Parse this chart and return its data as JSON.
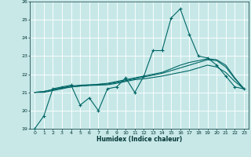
{
  "xlabel": "Humidex (Indice chaleur)",
  "xlim": [
    -0.5,
    23.5
  ],
  "ylim": [
    19,
    26
  ],
  "yticks": [
    19,
    20,
    21,
    22,
    23,
    24,
    25,
    26
  ],
  "xticks": [
    0,
    1,
    2,
    3,
    4,
    5,
    6,
    7,
    8,
    9,
    10,
    11,
    12,
    13,
    14,
    15,
    16,
    17,
    18,
    19,
    20,
    21,
    22,
    23
  ],
  "background_color": "#c8e8e8",
  "line_color": "#006666",
  "grid_color": "#ffffff",
  "line1": [
    19.0,
    19.7,
    21.2,
    21.3,
    21.4,
    20.3,
    20.7,
    20.0,
    21.2,
    21.3,
    21.8,
    21.0,
    21.9,
    23.3,
    23.3,
    25.1,
    25.6,
    24.2,
    23.0,
    22.9,
    22.5,
    21.9,
    21.3,
    21.2
  ],
  "line2": [
    21.0,
    21.05,
    21.15,
    21.25,
    21.3,
    21.35,
    21.4,
    21.45,
    21.5,
    21.6,
    21.7,
    21.8,
    21.9,
    22.0,
    22.1,
    22.3,
    22.5,
    22.65,
    22.75,
    22.85,
    22.8,
    22.5,
    21.8,
    21.2
  ],
  "line3": [
    21.0,
    21.05,
    21.15,
    21.25,
    21.35,
    21.4,
    21.42,
    21.44,
    21.46,
    21.55,
    21.65,
    21.75,
    21.85,
    21.95,
    22.05,
    22.2,
    22.35,
    22.5,
    22.65,
    22.8,
    22.75,
    22.4,
    21.75,
    21.2
  ],
  "line4": [
    21.0,
    21.0,
    21.1,
    21.2,
    21.3,
    21.35,
    21.38,
    21.4,
    21.42,
    21.5,
    21.6,
    21.7,
    21.75,
    21.82,
    21.9,
    22.0,
    22.1,
    22.2,
    22.35,
    22.5,
    22.4,
    22.1,
    21.6,
    21.2
  ]
}
